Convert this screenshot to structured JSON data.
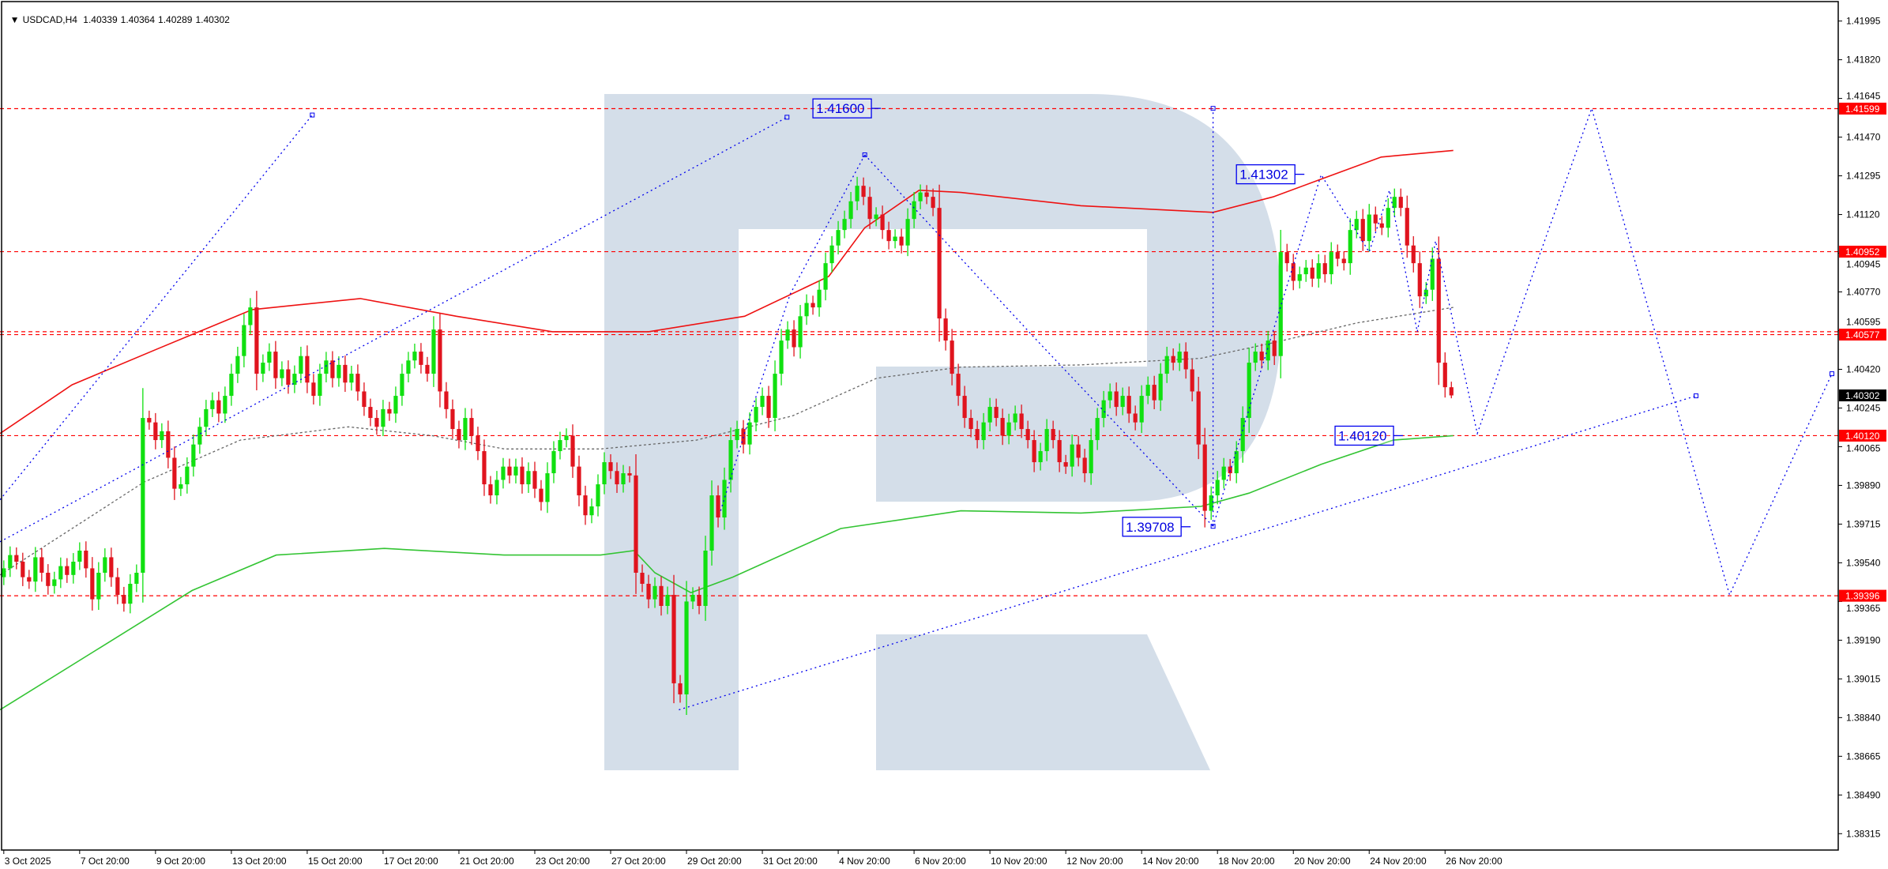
{
  "header": {
    "menu_icon": "triangle-down-icon",
    "symbol": "USDCAD,H4",
    "open": "1.40339",
    "high": "1.40364",
    "low": "1.40289",
    "close": "1.40302"
  },
  "colors": {
    "bull": "#10e010",
    "bear": "#e0141e",
    "level_line": "#ff0000",
    "badge": "#ff0000",
    "current_badge": "#000000",
    "ma_red": "#ee1111",
    "ma_green": "#33c433",
    "ma_gray": "#666666",
    "annotation": "#0000ee",
    "watermark": "#d4dee9"
  },
  "chart_data": {
    "type": "candlestick",
    "title": "",
    "xlim": [
      -0.6,
      290.2
    ],
    "ylim": [
      1.38246,
      1.42083
    ],
    "grid": false,
    "first_open": 1.3948,
    "closes": [
      1.3952,
      1.3958,
      1.3955,
      1.3948,
      1.3946,
      1.3957,
      1.395,
      1.3944,
      1.3947,
      1.3953,
      1.3949,
      1.3955,
      1.396,
      1.3952,
      1.3938,
      1.395,
      1.3957,
      1.3948,
      1.394,
      1.3936,
      1.3945,
      1.395,
      1.402,
      1.4018,
      1.401,
      1.4014,
      1.4002,
      1.3988,
      1.399,
      1.3998,
      1.4008,
      1.4016,
      1.4024,
      1.4028,
      1.4022,
      1.403,
      1.404,
      1.4048,
      1.4062,
      1.407,
      1.404,
      1.4045,
      1.405,
      1.4038,
      1.4042,
      1.4035,
      1.404,
      1.4048,
      1.4036,
      1.403,
      1.404,
      1.4046,
      1.4038,
      1.4044,
      1.4036,
      1.404,
      1.4032,
      1.4025,
      1.402,
      1.4016,
      1.4024,
      1.4022,
      1.403,
      1.404,
      1.4046,
      1.405,
      1.4044,
      1.404,
      1.406,
      1.4032,
      1.4024,
      1.4015,
      1.401,
      1.402,
      1.4012,
      1.4005,
      1.399,
      1.3985,
      1.3992,
      1.3998,
      1.3994,
      1.3998,
      1.399,
      1.3996,
      1.3988,
      1.3982,
      1.3995,
      1.4005,
      1.401,
      1.4012,
      1.3998,
      1.3985,
      1.3976,
      1.398,
      1.399,
      1.4,
      1.3996,
      1.399,
      1.3995,
      1.3994,
      1.395,
      1.3945,
      1.3938,
      1.3944,
      1.3935,
      1.394,
      1.39,
      1.3895,
      1.3937,
      1.394,
      1.3935,
      1.396,
      1.3985,
      1.3975,
      1.3992,
      1.401,
      1.4015,
      1.4008,
      1.4018,
      1.4025,
      1.403,
      1.402,
      1.404,
      1.4055,
      1.406,
      1.4052,
      1.4066,
      1.4072,
      1.407,
      1.4078,
      1.409,
      1.4098,
      1.4105,
      1.411,
      1.4118,
      1.4125,
      1.412,
      1.411,
      1.4112,
      1.4105,
      1.41,
      1.4102,
      1.4098,
      1.411,
      1.4118,
      1.4122,
      1.412,
      1.4115,
      1.4065,
      1.4055,
      1.404,
      1.403,
      1.402,
      1.4015,
      1.401,
      1.4018,
      1.4025,
      1.402,
      1.4012,
      1.4018,
      1.4022,
      1.4015,
      1.401,
      1.4,
      1.4005,
      1.4015,
      1.401,
      1.4,
      1.3998,
      1.4008,
      1.4002,
      1.3995,
      1.401,
      1.402,
      1.4028,
      1.4032,
      1.4025,
      1.403,
      1.4022,
      1.4018,
      1.403,
      1.4035,
      1.4028,
      1.404,
      1.4048,
      1.4045,
      1.405,
      1.4042,
      1.4032,
      1.4008,
      1.3978,
      1.3985,
      1.3992,
      1.3998,
      1.3995,
      1.4005,
      1.402,
      1.4045,
      1.405,
      1.4046,
      1.4055,
      1.4048,
      1.4095,
      1.409,
      1.4082,
      1.4085,
      1.4088,
      1.4083,
      1.409,
      1.4085,
      1.4095,
      1.4092,
      1.409,
      1.4105,
      1.411,
      1.41,
      1.4112,
      1.4108,
      1.4106,
      1.4115,
      1.412,
      1.4115,
      1.4098,
      1.409,
      1.4075,
      1.4078,
      1.4092,
      1.4045,
      1.40339,
      1.40302
    ],
    "y_ticks": [
      "1.41995",
      "1.41820",
      "1.41645",
      "1.41470",
      "1.41295",
      "1.41120",
      "1.40945",
      "1.40770",
      "1.40595",
      "1.40420",
      "1.40245",
      "1.40065",
      "1.39890",
      "1.39715",
      "1.39540",
      "1.39365",
      "1.39190",
      "1.39015",
      "1.38840",
      "1.38665",
      "1.38490",
      "1.38315"
    ],
    "x_ticks": [
      {
        "bar": 0,
        "label": "3 Oct 2025"
      },
      {
        "bar": 12,
        "label": "7 Oct 20:00"
      },
      {
        "bar": 24,
        "label": "9 Oct 20:00"
      },
      {
        "bar": 36,
        "label": "13 Oct 20:00"
      },
      {
        "bar": 48,
        "label": "15 Oct 20:00"
      },
      {
        "bar": 60,
        "label": "17 Oct 20:00"
      },
      {
        "bar": 72,
        "label": "21 Oct 20:00"
      },
      {
        "bar": 84,
        "label": "23 Oct 20:00"
      },
      {
        "bar": 96,
        "label": "27 Oct 20:00"
      },
      {
        "bar": 108,
        "label": "29 Oct 20:00"
      },
      {
        "bar": 120,
        "label": "31 Oct 20:00"
      },
      {
        "bar": 132,
        "label": "4 Nov 20:00"
      },
      {
        "bar": 144,
        "label": "6 Nov 20:00"
      },
      {
        "bar": 156,
        "label": "10 Nov 20:00"
      },
      {
        "bar": 168,
        "label": "12 Nov 20:00"
      },
      {
        "bar": 180,
        "label": "14 Nov 20:00"
      },
      {
        "bar": 192,
        "label": "18 Nov 20:00"
      },
      {
        "bar": 204,
        "label": "20 Nov 20:00"
      },
      {
        "bar": 216,
        "label": "24 Nov 20:00"
      },
      {
        "bar": 228,
        "label": "26 Nov 20:00"
      }
    ],
    "levels": [
      {
        "price": 1.41599,
        "label": "1.41599"
      },
      {
        "price": 1.40952,
        "label": "1.40952"
      },
      {
        "price": 1.4059,
        "label": ""
      },
      {
        "price": 1.40577,
        "label": "1.40577"
      },
      {
        "price": 1.4012,
        "label": "1.40120"
      },
      {
        "price": 1.39396,
        "label": "1.39396"
      }
    ],
    "current_price": "1.40302",
    "moving_averages": [
      {
        "style": "red",
        "points": [
          [
            -0.6,
            1.4013
          ],
          [
            10.8,
            1.4035
          ],
          [
            24.1,
            1.4051
          ],
          [
            39.3,
            1.4069
          ],
          [
            56.4,
            1.4074
          ],
          [
            71.6,
            1.4066
          ],
          [
            86.8,
            1.4059
          ],
          [
            102,
            1.4059
          ],
          [
            117.2,
            1.4066
          ],
          [
            130.5,
            1.4084
          ],
          [
            136.2,
            1.4106
          ],
          [
            144.8,
            1.4123
          ],
          [
            151.4,
            1.4122
          ],
          [
            170.4,
            1.4116
          ],
          [
            191.3,
            1.4113
          ],
          [
            200.8,
            1.412
          ],
          [
            208.4,
            1.4128
          ],
          [
            217.9,
            1.4138
          ],
          [
            229.3,
            1.4141
          ]
        ]
      },
      {
        "style": "green",
        "points": [
          [
            -0.6,
            1.3888
          ],
          [
            14.6,
            1.3915
          ],
          [
            29.8,
            1.3942
          ],
          [
            43.1,
            1.3958
          ],
          [
            60.2,
            1.3961
          ],
          [
            79.2,
            1.3958
          ],
          [
            94.4,
            1.3958
          ],
          [
            99.7,
            1.396
          ],
          [
            103,
            1.395
          ],
          [
            108.7,
            1.3941
          ],
          [
            115.3,
            1.3948
          ],
          [
            132.4,
            1.397
          ],
          [
            151.4,
            1.3978
          ],
          [
            170.4,
            1.3977
          ],
          [
            189.4,
            1.398
          ],
          [
            197,
            1.3986
          ],
          [
            208.4,
            1.3999
          ],
          [
            219.8,
            1.401
          ],
          [
            229.3,
            1.4012
          ]
        ]
      },
      {
        "style": "gray",
        "points": [
          [
            -0.6,
            1.3949
          ],
          [
            10.8,
            1.397
          ],
          [
            22.2,
            1.3991
          ],
          [
            37.4,
            1.401
          ],
          [
            54.5,
            1.4016
          ],
          [
            67.8,
            1.4012
          ],
          [
            79.2,
            1.4006
          ],
          [
            94.4,
            1.4006
          ],
          [
            109.6,
            1.401
          ],
          [
            124.8,
            1.4021
          ],
          [
            138.1,
            1.4038
          ],
          [
            151.4,
            1.4043
          ],
          [
            170.4,
            1.4044
          ],
          [
            189.4,
            1.4047
          ],
          [
            200.8,
            1.4054
          ],
          [
            214.1,
            1.4063
          ],
          [
            229.3,
            1.407
          ]
        ]
      }
    ],
    "annotations": {
      "lines": [
        [
          [
            -0.6,
            1.3983
          ],
          [
            48.8,
            1.4157
          ]
        ],
        [
          [
            -0.6,
            1.3964
          ],
          [
            123.9,
            1.4156
          ]
        ],
        [
          [
            106.8,
            1.3888
          ],
          [
            267.7,
            1.403
          ]
        ],
        [
          [
            113.4,
            1.3978
          ],
          [
            118.7,
            1.4027
          ],
          [
            124.4,
            1.4076
          ],
          [
            136.2,
            1.4139
          ]
        ],
        [
          [
            136.2,
            1.4139
          ],
          [
            163.8,
            1.4054
          ],
          [
            191.3,
            1.3971
          ]
        ],
        [
          [
            191.3,
            1.3971
          ],
          [
            191.3,
            1.416
          ]
        ],
        [
          [
            191.3,
            1.3971
          ],
          [
            208.4,
            1.413
          ],
          [
            216,
            1.4095
          ],
          [
            219.2,
            1.4123
          ],
          [
            223.6,
            1.4059
          ],
          [
            226.5,
            1.41
          ],
          [
            233.1,
            1.4013
          ],
          [
            242,
            1.4086
          ],
          [
            251.2,
            1.416
          ],
          [
            262,
            1.4051
          ],
          [
            273,
            1.394
          ],
          [
            289.2,
            1.404
          ]
        ]
      ],
      "labels": [
        {
          "text": "1.41600",
          "bar": 128,
          "price": 1.416
        },
        {
          "text": "1.41302",
          "bar": 195,
          "price": 1.41302
        },
        {
          "text": "1.39708",
          "bar": 177,
          "price": 1.39708
        },
        {
          "text": "1.40120",
          "bar": 210.6,
          "price": 1.4012
        }
      ]
    }
  }
}
